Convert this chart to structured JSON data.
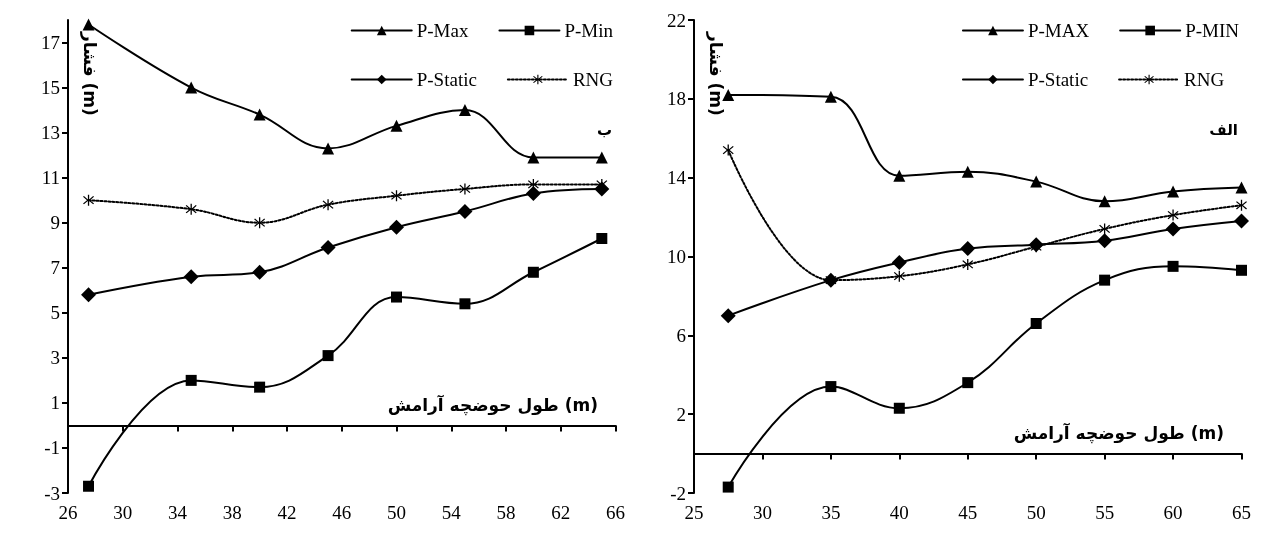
{
  "chart_data": [
    {
      "type": "line",
      "xlabel": "طول حوضچه آرامش (m)",
      "ylabel": "فشار (m)",
      "annotations": [
        "ب"
      ],
      "x": [
        27.5,
        35,
        40,
        45,
        50,
        55,
        60,
        65
      ],
      "xlim": [
        26,
        66
      ],
      "xticks": [
        26,
        30,
        34,
        38,
        42,
        46,
        50,
        54,
        58,
        62,
        66
      ],
      "ylim": [
        -3,
        18
      ],
      "yticks": [
        -3,
        -1,
        1,
        3,
        5,
        7,
        9,
        11,
        13,
        15,
        17
      ],
      "grid": false,
      "legend": "top right",
      "series": [
        {
          "name": "P-Max",
          "color": "#000000",
          "marker": "triangle",
          "line_style": "solid",
          "values": [
            17.8,
            15.0,
            13.8,
            12.3,
            13.3,
            14.0,
            11.9,
            11.9
          ]
        },
        {
          "name": "P-Min",
          "color": "#000000",
          "marker": "square",
          "line_style": "solid",
          "values": [
            -2.7,
            2.0,
            1.7,
            3.1,
            5.7,
            5.4,
            6.8,
            8.3
          ]
        },
        {
          "name": "P-Static",
          "color": "#000000",
          "marker": "diamond",
          "line_style": "solid",
          "values": [
            5.8,
            6.6,
            6.8,
            7.9,
            8.8,
            9.5,
            10.3,
            10.5
          ]
        },
        {
          "name": "RNG",
          "color": "#000000",
          "marker": "cross",
          "line_style": "dotted",
          "values": [
            10.0,
            9.6,
            9.0,
            9.8,
            10.2,
            10.5,
            10.7,
            10.7
          ]
        }
      ]
    },
    {
      "type": "line",
      "xlabel": "طول حوضچه آرامش (m)",
      "ylabel": "فشار (m)",
      "annotations": [
        "الف"
      ],
      "x": [
        27.5,
        35,
        40,
        45,
        50,
        55,
        60,
        65
      ],
      "xlim": [
        25,
        65
      ],
      "xticks": [
        25,
        30,
        35,
        40,
        45,
        50,
        55,
        60,
        65
      ],
      "ylim": [
        -2,
        22
      ],
      "yticks": [
        -2,
        2,
        6,
        10,
        14,
        18,
        22
      ],
      "grid": false,
      "legend": "top right",
      "series": [
        {
          "name": "P-MAX",
          "color": "#000000",
          "marker": "triangle",
          "line_style": "solid",
          "values": [
            18.2,
            18.1,
            14.1,
            14.3,
            13.8,
            12.8,
            13.3,
            13.5
          ]
        },
        {
          "name": "P-MIN",
          "color": "#000000",
          "marker": "square",
          "line_style": "solid",
          "values": [
            -1.7,
            3.4,
            2.3,
            3.6,
            6.6,
            8.8,
            9.5,
            9.3
          ]
        },
        {
          "name": "P-Static",
          "color": "#000000",
          "marker": "diamond",
          "line_style": "solid",
          "values": [
            7.0,
            8.8,
            9.7,
            10.4,
            10.6,
            10.8,
            11.4,
            11.8
          ]
        },
        {
          "name": "RNG",
          "color": "#000000",
          "marker": "cross",
          "line_style": "dotted",
          "values": [
            15.4,
            8.8,
            9.0,
            9.6,
            10.5,
            11.4,
            12.1,
            12.6
          ]
        }
      ]
    }
  ]
}
